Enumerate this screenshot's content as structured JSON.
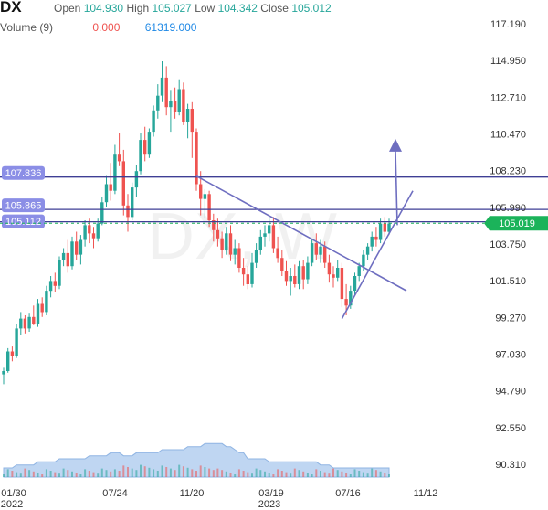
{
  "header": {
    "symbol": "DX",
    "open_label": "Open",
    "open": "104.930",
    "high_label": "High",
    "high": "105.027",
    "low_label": "Low",
    "low": "104.342",
    "close_label": "Close",
    "close": "105.012",
    "volume_label": "Volume (9)",
    "volume_value": "0.000",
    "volume_ma": "61319.000"
  },
  "watermark": "DX, W",
  "colors": {
    "up": "#26a69a",
    "down": "#ef5350",
    "hline": "#3f3f95",
    "trend": "#6e6ec0",
    "price_tag": "#1bb35a",
    "level_tag": "#8b8ee6",
    "volume_area": "#a9c8ee",
    "volume_bar": "#9aa7e0"
  },
  "chart_data": {
    "type": "candlestick",
    "y_range": [
      89.2,
      118.3
    ],
    "y_ticks": [
      "117.190",
      "114.950",
      "112.710",
      "110.470",
      "108.230",
      "105.990",
      "103.750",
      "101.510",
      "99.270",
      "97.030",
      "94.790",
      "92.550",
      "90.310"
    ],
    "x_ticks": [
      {
        "label": "01/30",
        "sub": "2022"
      },
      {
        "label": "07/24",
        "sub": ""
      },
      {
        "label": "11/20",
        "sub": ""
      },
      {
        "label": "03/19",
        "sub": "2023"
      },
      {
        "label": "07/16",
        "sub": ""
      },
      {
        "label": "11/12",
        "sub": ""
      }
    ],
    "last_price": {
      "label": "105.019",
      "value": 105.019
    },
    "levels": [
      {
        "label": "107.836",
        "value": 107.836
      },
      {
        "label": "105.865",
        "value": 105.865
      },
      {
        "label": "105.112",
        "value": 105.112
      }
    ],
    "candles": [
      [
        95.8,
        96.2,
        95.2,
        96.0
      ],
      [
        96.0,
        97.4,
        95.9,
        97.2
      ],
      [
        97.2,
        97.5,
        96.6,
        96.9
      ],
      [
        96.9,
        98.9,
        96.8,
        98.6
      ],
      [
        98.6,
        99.6,
        98.2,
        99.2
      ],
      [
        99.2,
        99.4,
        98.3,
        98.6
      ],
      [
        98.6,
        99.5,
        98.4,
        99.3
      ],
      [
        99.3,
        100.0,
        98.8,
        98.9
      ],
      [
        98.9,
        100.4,
        98.7,
        100.1
      ],
      [
        100.1,
        100.5,
        99.3,
        99.6
      ],
      [
        99.6,
        101.2,
        99.4,
        100.9
      ],
      [
        100.9,
        101.8,
        100.5,
        101.5
      ],
      [
        101.5,
        102.0,
        100.8,
        101.2
      ],
      [
        101.2,
        103.0,
        101.0,
        102.8
      ],
      [
        102.8,
        103.5,
        102.4,
        103.2
      ],
      [
        103.2,
        104.0,
        102.0,
        102.4
      ],
      [
        102.4,
        104.2,
        102.2,
        103.9
      ],
      [
        103.9,
        104.5,
        102.8,
        103.1
      ],
      [
        103.1,
        104.3,
        102.5,
        104.0
      ],
      [
        104.0,
        105.2,
        103.6,
        104.9
      ],
      [
        104.9,
        105.3,
        103.8,
        104.4
      ],
      [
        104.4,
        104.8,
        103.5,
        104.1
      ],
      [
        104.1,
        105.3,
        103.9,
        105.0
      ],
      [
        105.0,
        106.6,
        104.9,
        106.3
      ],
      [
        106.3,
        107.9,
        106.0,
        107.4
      ],
      [
        107.4,
        108.7,
        106.4,
        107.0
      ],
      [
        107.0,
        109.8,
        106.8,
        109.2
      ],
      [
        109.2,
        110.5,
        108.5,
        108.8
      ],
      [
        108.8,
        109.5,
        105.5,
        106.1
      ],
      [
        106.1,
        106.8,
        104.5,
        105.4
      ],
      [
        105.4,
        107.5,
        105.2,
        107.2
      ],
      [
        107.2,
        108.6,
        106.6,
        108.2
      ],
      [
        108.2,
        110.5,
        108.0,
        110.1
      ],
      [
        110.1,
        110.9,
        108.8,
        109.2
      ],
      [
        109.2,
        110.8,
        109.0,
        110.6
      ],
      [
        110.6,
        112.2,
        110.3,
        111.9
      ],
      [
        111.9,
        113.5,
        111.4,
        112.8
      ],
      [
        112.8,
        114.9,
        112.4,
        113.9
      ],
      [
        113.9,
        114.6,
        111.6,
        112.1
      ],
      [
        112.1,
        113.1,
        110.6,
        112.5
      ],
      [
        112.5,
        113.3,
        111.4,
        111.8
      ],
      [
        111.8,
        113.8,
        111.6,
        113.2
      ],
      [
        113.2,
        113.6,
        111.0,
        111.2
      ],
      [
        111.2,
        112.3,
        110.2,
        112.0
      ],
      [
        112.0,
        112.4,
        109.0,
        110.6
      ],
      [
        110.6,
        110.8,
        107.0,
        107.4
      ],
      [
        107.4,
        108.2,
        105.5,
        106.5
      ],
      [
        106.5,
        107.1,
        105.3,
        106.8
      ],
      [
        106.8,
        107.0,
        104.8,
        105.2
      ],
      [
        105.2,
        105.6,
        103.9,
        104.6
      ],
      [
        104.6,
        105.3,
        103.6,
        104.1
      ],
      [
        104.1,
        104.5,
        102.9,
        103.4
      ],
      [
        103.4,
        104.8,
        103.1,
        104.4
      ],
      [
        104.4,
        104.9,
        102.7,
        103.1
      ],
      [
        103.1,
        104.0,
        102.5,
        103.5
      ],
      [
        103.5,
        103.8,
        102.0,
        102.3
      ],
      [
        102.3,
        102.9,
        101.2,
        101.9
      ],
      [
        101.9,
        102.4,
        101.0,
        101.3
      ],
      [
        101.3,
        103.2,
        101.1,
        102.6
      ],
      [
        102.6,
        103.8,
        102.3,
        103.4
      ],
      [
        103.4,
        104.6,
        103.1,
        104.2
      ],
      [
        104.2,
        104.9,
        103.6,
        104.4
      ],
      [
        104.4,
        105.3,
        103.9,
        104.9
      ],
      [
        104.9,
        105.4,
        103.2,
        103.5
      ],
      [
        103.5,
        104.2,
        102.6,
        102.9
      ],
      [
        102.9,
        103.4,
        101.8,
        102.1
      ],
      [
        102.1,
        102.7,
        101.2,
        101.5
      ],
      [
        101.5,
        102.3,
        100.6,
        101.8
      ],
      [
        101.8,
        102.5,
        101.1,
        101.3
      ],
      [
        101.3,
        102.7,
        101.0,
        102.4
      ],
      [
        102.4,
        102.8,
        101.0,
        101.6
      ],
      [
        101.6,
        103.0,
        101.3,
        102.6
      ],
      [
        102.6,
        104.0,
        102.4,
        103.8
      ],
      [
        103.8,
        104.4,
        102.8,
        103.1
      ],
      [
        103.1,
        104.0,
        102.6,
        103.6
      ],
      [
        103.6,
        103.9,
        102.3,
        102.6
      ],
      [
        102.6,
        103.1,
        101.4,
        101.9
      ],
      [
        101.9,
        102.4,
        101.1,
        101.7
      ],
      [
        101.7,
        102.8,
        101.5,
        102.3
      ],
      [
        102.3,
        102.6,
        99.9,
        100.4
      ],
      [
        100.4,
        101.3,
        99.4,
        100.0
      ],
      [
        100.0,
        101.2,
        99.8,
        100.9
      ],
      [
        100.9,
        102.0,
        100.6,
        101.8
      ],
      [
        101.8,
        102.6,
        101.5,
        102.4
      ],
      [
        102.4,
        103.4,
        102.1,
        103.1
      ],
      [
        103.1,
        103.8,
        102.8,
        103.6
      ],
      [
        103.6,
        104.5,
        103.3,
        104.2
      ],
      [
        104.2,
        104.8,
        103.6,
        104.0
      ],
      [
        104.0,
        105.3,
        103.8,
        105.0
      ],
      [
        105.0,
        105.4,
        104.2,
        104.5
      ],
      [
        104.5,
        105.3,
        104.3,
        105.0
      ]
    ],
    "volume": [
      3,
      3,
      3,
      4,
      4,
      4,
      4,
      4,
      5,
      5,
      5,
      5,
      5,
      6,
      6,
      6,
      6,
      6,
      6,
      6,
      7,
      7,
      7,
      7,
      7,
      8,
      8,
      8,
      7,
      7,
      7,
      8,
      8,
      8,
      8,
      8,
      8,
      9,
      9,
      9,
      9,
      9,
      9,
      10,
      10,
      10,
      10,
      11,
      11,
      11,
      11,
      11,
      10,
      10,
      9,
      8,
      8,
      6,
      6,
      6,
      6,
      6,
      5,
      5,
      5,
      5,
      5,
      5,
      5,
      5,
      5,
      5,
      5,
      5,
      4,
      4,
      4,
      3,
      3,
      3,
      3,
      3,
      3,
      3,
      3,
      3,
      3,
      3,
      3,
      3,
      3
    ]
  }
}
